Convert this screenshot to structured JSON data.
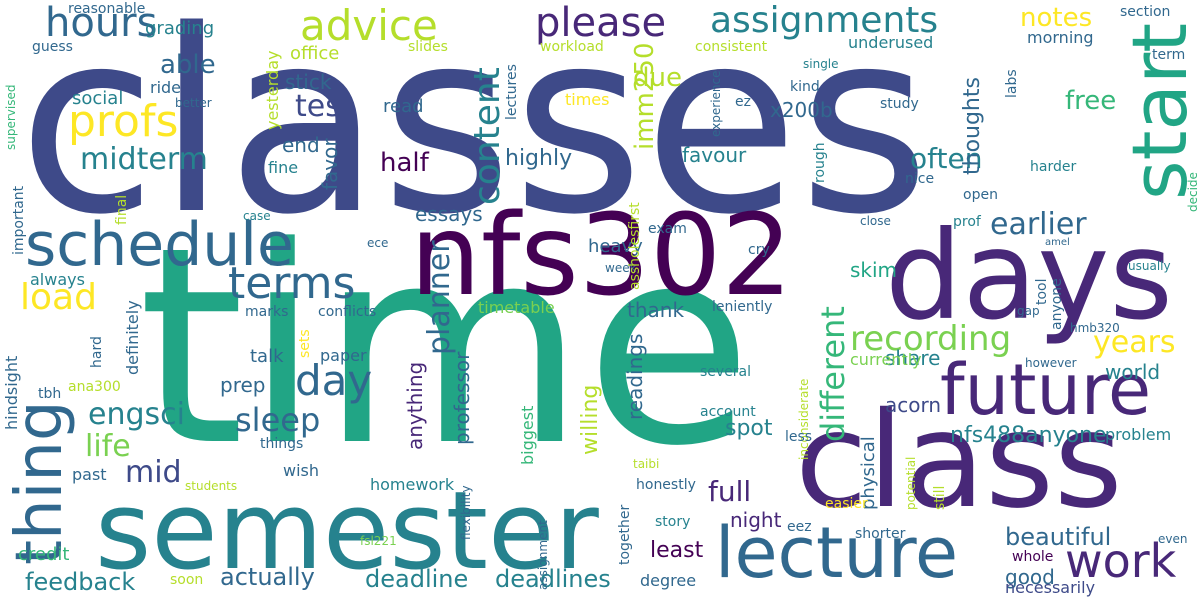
{
  "colors": {
    "c1": "#3e4a89",
    "c2": "#440154",
    "c3": "#21a585",
    "c4": "#31688e",
    "c5": "#7ad151",
    "c6": "#fde725",
    "c7": "#26828e",
    "c8": "#482878",
    "c9": "#b5de2b",
    "c10": "#35b779",
    "c11": "#1f9e89"
  },
  "words": [
    {
      "text": "classes",
      "color": "c1"
    },
    {
      "text": "time",
      "color": "c3"
    },
    {
      "text": "nfs302",
      "color": "c2"
    },
    {
      "text": "days",
      "color": "c8"
    },
    {
      "text": "class",
      "color": "c8"
    },
    {
      "text": "semester",
      "color": "c7"
    },
    {
      "text": "schedule",
      "color": "c4"
    },
    {
      "text": "lecture",
      "color": "c4"
    },
    {
      "text": "future",
      "color": "c8"
    },
    {
      "text": "start",
      "color": "c3"
    },
    {
      "text": "thing",
      "color": "c4"
    },
    {
      "text": "please",
      "color": "c8"
    },
    {
      "text": "assignments",
      "color": "c7"
    },
    {
      "text": "hours",
      "color": "c4"
    },
    {
      "text": "advice",
      "color": "c9"
    },
    {
      "text": "profs",
      "color": "c6"
    },
    {
      "text": "content",
      "color": "c7"
    },
    {
      "text": "terms",
      "color": "c4"
    },
    {
      "text": "day",
      "color": "c4"
    },
    {
      "text": "work",
      "color": "c8"
    },
    {
      "text": "load",
      "color": "c6"
    },
    {
      "text": "different",
      "color": "c10"
    },
    {
      "text": "recording",
      "color": "c5"
    },
    {
      "text": "years",
      "color": "c6"
    },
    {
      "text": "earlier",
      "color": "c4"
    },
    {
      "text": "engsci",
      "color": "c7"
    },
    {
      "text": "sleep",
      "color": "c4"
    },
    {
      "text": "mid",
      "color": "c1"
    },
    {
      "text": "life",
      "color": "c5"
    },
    {
      "text": "full",
      "color": "c8"
    },
    {
      "text": "midterm",
      "color": "c7"
    },
    {
      "text": "test",
      "color": "c1"
    },
    {
      "text": "planner",
      "color": "c4"
    },
    {
      "text": "often",
      "color": "c7"
    },
    {
      "text": "imm250",
      "color": "c9"
    },
    {
      "text": "deadline",
      "color": "c7"
    },
    {
      "text": "deadlines",
      "color": "c7"
    },
    {
      "text": "actually",
      "color": "c4"
    },
    {
      "text": "feedback",
      "color": "c7"
    },
    {
      "text": "beautiful",
      "color": "c4"
    },
    {
      "text": "notes",
      "color": "c6"
    },
    {
      "text": "able",
      "color": "c4"
    },
    {
      "text": "due",
      "color": "c9"
    },
    {
      "text": "free",
      "color": "c10"
    },
    {
      "text": "nfs488anyone",
      "color": "c7"
    },
    {
      "text": "thoughts",
      "color": "c4"
    },
    {
      "text": "x200b",
      "color": "c4"
    },
    {
      "text": "half",
      "color": "c2"
    },
    {
      "text": "highly",
      "color": "c4"
    },
    {
      "text": "essays",
      "color": "c4"
    },
    {
      "text": "skim",
      "color": "c3"
    },
    {
      "text": "least",
      "color": "c2"
    },
    {
      "text": "good",
      "color": "c4"
    },
    {
      "text": "share",
      "color": "c7"
    },
    {
      "text": "world",
      "color": "c7"
    },
    {
      "text": "acorn",
      "color": "c1"
    },
    {
      "text": "night",
      "color": "c8"
    },
    {
      "text": "spot",
      "color": "c7"
    },
    {
      "text": "willing",
      "color": "c9"
    },
    {
      "text": "readings",
      "color": "c4"
    },
    {
      "text": "physical",
      "color": "c4"
    },
    {
      "text": "professor",
      "color": "c4"
    },
    {
      "text": "anything",
      "color": "c8"
    },
    {
      "text": "favour",
      "color": "c7"
    },
    {
      "text": "favor",
      "color": "c4"
    },
    {
      "text": "grading",
      "color": "c7"
    },
    {
      "text": "social",
      "color": "c7"
    },
    {
      "text": "ride",
      "color": "c4"
    },
    {
      "text": "stick",
      "color": "c4"
    },
    {
      "text": "office",
      "color": "c9"
    },
    {
      "text": "yesterday",
      "color": "c9"
    },
    {
      "text": "end",
      "color": "c4"
    },
    {
      "text": "fine",
      "color": "c7"
    },
    {
      "text": "read",
      "color": "c4"
    },
    {
      "text": "morning",
      "color": "c4"
    },
    {
      "text": "underused",
      "color": "c7"
    },
    {
      "text": "consistent",
      "color": "c9"
    },
    {
      "text": "workload",
      "color": "c9"
    },
    {
      "text": "slides",
      "color": "c9"
    },
    {
      "text": "lectures",
      "color": "c4"
    },
    {
      "text": "section",
      "color": "c4"
    },
    {
      "text": "term",
      "color": "c4"
    },
    {
      "text": "labs",
      "color": "c4"
    },
    {
      "text": "kind",
      "color": "c4"
    },
    {
      "text": "single",
      "color": "c7"
    },
    {
      "text": "times",
      "color": "c6"
    },
    {
      "text": "ez",
      "color": "c4"
    },
    {
      "text": "experience",
      "color": "c4"
    },
    {
      "text": "study",
      "color": "c4"
    },
    {
      "text": "rough",
      "color": "c7"
    },
    {
      "text": "nice",
      "color": "c4"
    },
    {
      "text": "harder",
      "color": "c7"
    },
    {
      "text": "open",
      "color": "c4"
    },
    {
      "text": "decide",
      "color": "c10"
    },
    {
      "text": "close",
      "color": "c4"
    },
    {
      "text": "prof",
      "color": "c7"
    },
    {
      "text": "usually",
      "color": "c7"
    },
    {
      "text": "amel",
      "color": "c4"
    },
    {
      "text": "anyone",
      "color": "c4"
    },
    {
      "text": "tool",
      "color": "c4"
    },
    {
      "text": "gap",
      "color": "c4"
    },
    {
      "text": "hmb320",
      "color": "c4"
    },
    {
      "text": "however",
      "color": "c4"
    },
    {
      "text": "currently",
      "color": "c5"
    },
    {
      "text": "problem",
      "color": "c7"
    },
    {
      "text": "still",
      "color": "c9"
    },
    {
      "text": "potential",
      "color": "c9"
    },
    {
      "text": "easier",
      "color": "c6"
    },
    {
      "text": "shorter",
      "color": "c4"
    },
    {
      "text": "whole",
      "color": "c2"
    },
    {
      "text": "even",
      "color": "c4"
    },
    {
      "text": "necessarily",
      "color": "c1"
    },
    {
      "text": "reasonable",
      "color": "c4"
    },
    {
      "text": "guess",
      "color": "c4"
    },
    {
      "text": "better",
      "color": "c4"
    },
    {
      "text": "supervised",
      "color": "c10"
    },
    {
      "text": "important",
      "color": "c4"
    },
    {
      "text": "final",
      "color": "c9"
    },
    {
      "text": "case",
      "color": "c7"
    },
    {
      "text": "ece",
      "color": "c4"
    },
    {
      "text": "always",
      "color": "c7"
    },
    {
      "text": "definitely",
      "color": "c4"
    },
    {
      "text": "hard",
      "color": "c4"
    },
    {
      "text": "hindsight",
      "color": "c4"
    },
    {
      "text": "marks",
      "color": "c4"
    },
    {
      "text": "sets",
      "color": "c6"
    },
    {
      "text": "conflicts",
      "color": "c4"
    },
    {
      "text": "paper",
      "color": "c4"
    },
    {
      "text": "talk",
      "color": "c4"
    },
    {
      "text": "prep",
      "color": "c4"
    },
    {
      "text": "timetable",
      "color": "c5"
    },
    {
      "text": "thank",
      "color": "c4"
    },
    {
      "text": "biggest",
      "color": "c10"
    },
    {
      "text": "ana300",
      "color": "c9"
    },
    {
      "text": "tbh",
      "color": "c4"
    },
    {
      "text": "things",
      "color": "c4"
    },
    {
      "text": "wish",
      "color": "c4"
    },
    {
      "text": "past",
      "color": "c4"
    },
    {
      "text": "students",
      "color": "c9"
    },
    {
      "text": "homework",
      "color": "c7"
    },
    {
      "text": "credit",
      "color": "c10"
    },
    {
      "text": "soon",
      "color": "c9"
    },
    {
      "text": "exam",
      "color": "c4"
    },
    {
      "text": "heavy",
      "color": "c4"
    },
    {
      "text": "week",
      "color": "c4"
    },
    {
      "text": "cry",
      "color": "c4"
    },
    {
      "text": "assholesfirst",
      "color": "c9"
    },
    {
      "text": "leniently",
      "color": "c4"
    },
    {
      "text": "inconsiderate",
      "color": "c9"
    },
    {
      "text": "less",
      "color": "c4"
    },
    {
      "text": "account",
      "color": "c7"
    },
    {
      "text": "several",
      "color": "c7"
    },
    {
      "text": "taibi",
      "color": "c9"
    },
    {
      "text": "honestly",
      "color": "c4"
    },
    {
      "text": "together",
      "color": "c4"
    },
    {
      "text": "story",
      "color": "c7"
    },
    {
      "text": "eez",
      "color": "c4"
    },
    {
      "text": "flexibility",
      "color": "c4"
    },
    {
      "text": "fsl221",
      "color": "c5"
    },
    {
      "text": "assignment",
      "color": "c4"
    },
    {
      "text": "degree",
      "color": "c4"
    }
  ]
}
